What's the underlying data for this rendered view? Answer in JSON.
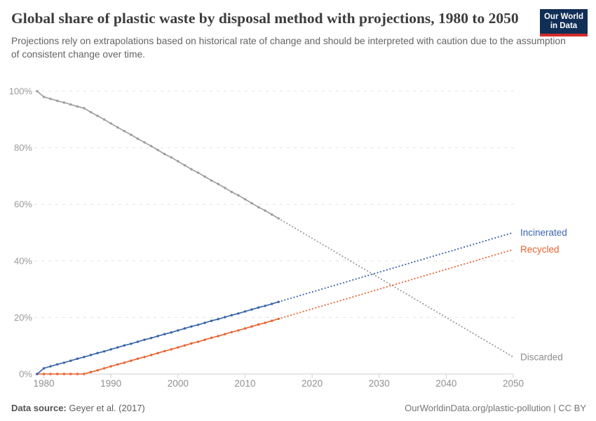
{
  "header": {
    "title": "Global share of plastic waste by disposal method with projections, 1980 to 2050",
    "subtitle": "Projections rely on extrapolations based on historical rate of change and should be interpreted with caution due to the assumption of consistent change over time.",
    "logo": {
      "line1": "Our World",
      "line2": "in Data",
      "bg_color": "#112e57",
      "accent_color": "#d42b2b"
    }
  },
  "footer": {
    "source_label": "Data source:",
    "source_value": "Geyer et al. (2017)",
    "right_text": "OurWorldinData.org/plastic-pollution | CC BY"
  },
  "chart_data": {
    "type": "line",
    "title": "Global share of plastic waste by disposal method with projections, 1980 to 2050",
    "unit": "%",
    "grid": true,
    "legend_position": "line-end-labels",
    "x_axis": {
      "start_year": 1979,
      "end_year": 2050,
      "ticks": [
        1980,
        1990,
        2000,
        2010,
        2020,
        2030,
        2040,
        2050
      ],
      "tick_labels": [
        "1980",
        "1990",
        "2000",
        "2010",
        "2020",
        "2030",
        "2040",
        "2050"
      ]
    },
    "y_axis": {
      "min": 0,
      "max": 100,
      "ticks": [
        0,
        20,
        40,
        60,
        80,
        100
      ],
      "tick_labels": [
        "0%",
        "20%",
        "40%",
        "60%",
        "80%",
        "100%"
      ]
    },
    "historical_range": [
      1979,
      2015
    ],
    "projection_range": [
      2015,
      2050
    ],
    "series": [
      {
        "name": "Discarded",
        "color": "#9b9b9b",
        "label_color": "#8d8d8d",
        "historical": {
          "start_year": 1979,
          "values": [
            100,
            98,
            97.3,
            96.6,
            96,
            95.3,
            94.6,
            94,
            92.6,
            91.3,
            90,
            88.6,
            87.2,
            85.9,
            84.6,
            83.2,
            81.9,
            80.6,
            79.2,
            77.8,
            76.6,
            75.2,
            73.8,
            72.4,
            71.2,
            69.8,
            68.4,
            67.2,
            65.8,
            64.4,
            63.2,
            61.8,
            60.4,
            59,
            57.8,
            56.4,
            55
          ]
        },
        "projection": {
          "years": [
            2015,
            2050
          ],
          "values": [
            55,
            6
          ]
        }
      },
      {
        "name": "Recycled",
        "color": "#e8622d",
        "label_color": "#e8622d",
        "historical": {
          "start_year": 1979,
          "values": [
            0,
            0,
            0,
            0,
            0,
            0,
            0,
            0,
            0.7,
            1.3,
            2,
            2.7,
            3.4,
            4,
            4.7,
            5.4,
            6,
            6.7,
            7.4,
            8.1,
            8.7,
            9.4,
            10.1,
            10.8,
            11.4,
            12.1,
            12.8,
            13.4,
            14.1,
            14.8,
            15.4,
            16.1,
            16.8,
            17.5,
            18.1,
            18.8,
            19.5
          ]
        },
        "projection": {
          "years": [
            2015,
            2050
          ],
          "values": [
            19.5,
            44
          ]
        }
      },
      {
        "name": "Incinerated",
        "color": "#3662a8",
        "label_color": "#3d64ad",
        "historical": {
          "start_year": 1979,
          "values": [
            0,
            2,
            2.7,
            3.4,
            4,
            4.7,
            5.4,
            6,
            6.7,
            7.4,
            8,
            8.7,
            9.4,
            10.1,
            10.7,
            11.4,
            12.1,
            12.7,
            13.4,
            14.1,
            14.7,
            15.4,
            16.1,
            16.8,
            17.4,
            18.1,
            18.8,
            19.4,
            20.1,
            20.8,
            21.4,
            22.1,
            22.8,
            23.5,
            24.1,
            24.8,
            25.5
          ]
        },
        "projection": {
          "years": [
            2015,
            2050
          ],
          "values": [
            25.5,
            50
          ]
        }
      }
    ]
  }
}
